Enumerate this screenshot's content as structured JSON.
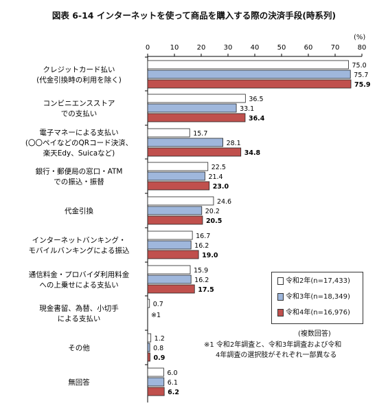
{
  "chart_data": {
    "type": "bar",
    "orientation": "horizontal",
    "title": "図表 6-14 インターネットを使って商品を購入する際の決済手段(時系列)",
    "unit": "(%)",
    "xlim": [
      0,
      80
    ],
    "ticks": [
      "0",
      "10",
      "20",
      "30",
      "40",
      "50",
      "60",
      "70",
      "80"
    ],
    "categories": [
      [
        "クレジットカード払い",
        "(代金引換時の利用を除く)"
      ],
      [
        "コンビニエンスストア",
        "での支払い"
      ],
      [
        "電子マネーによる支払い",
        "(〇〇ペイなどのQRコード決済、",
        "楽天Edy、Suicaなど)"
      ],
      [
        "銀行・郵便局の窓口・ATM",
        "での振込・振替"
      ],
      [
        "代金引換"
      ],
      [
        "インターネットバンキング・",
        "モバイルバンキングによる振込"
      ],
      [
        "通信料金・プロバイダ利用料金",
        "への上乗せによる支払い"
      ],
      [
        "現金書留、為替、小切手",
        "による支払い"
      ],
      [
        "その他"
      ],
      [
        "無回答"
      ]
    ],
    "series": [
      {
        "name": "令和2年(n=17,433)",
        "color": "#ffffff",
        "values": [
          75.0,
          36.5,
          15.7,
          22.5,
          24.6,
          16.7,
          15.9,
          0.7,
          1.2,
          6.0
        ],
        "labels": [
          "75.0",
          "36.5",
          "15.7",
          "22.5",
          "24.6",
          "16.7",
          "15.9",
          "0.7",
          "1.2",
          "6.0"
        ]
      },
      {
        "name": "令和3年(n=18,349)",
        "color": "#9fb7dc",
        "values": [
          75.7,
          33.1,
          28.1,
          21.4,
          20.2,
          16.2,
          16.2,
          null,
          0.8,
          6.1
        ],
        "labels": [
          "75.7",
          "33.1",
          "28.1",
          "21.4",
          "20.2",
          "16.2",
          "16.2",
          "",
          "0.8",
          "6.1"
        ]
      },
      {
        "name": "令和4年(n=16,976)",
        "color": "#c0504d",
        "values": [
          75.9,
          36.4,
          34.8,
          23.0,
          20.5,
          19.0,
          17.5,
          null,
          0.9,
          6.2
        ],
        "labels": [
          "75.9",
          "36.4",
          "34.8",
          "23.0",
          "20.5",
          "19.0",
          "17.5",
          "",
          "0.9",
          "6.2"
        ]
      }
    ],
    "missing_note": "※1",
    "multi_answer_note": "(複数回答)",
    "footnote": [
      "※1 令和2年調査と、令和3年調査および令和",
      "4年調査の選択肢がそれぞれ一部異なる"
    ]
  }
}
